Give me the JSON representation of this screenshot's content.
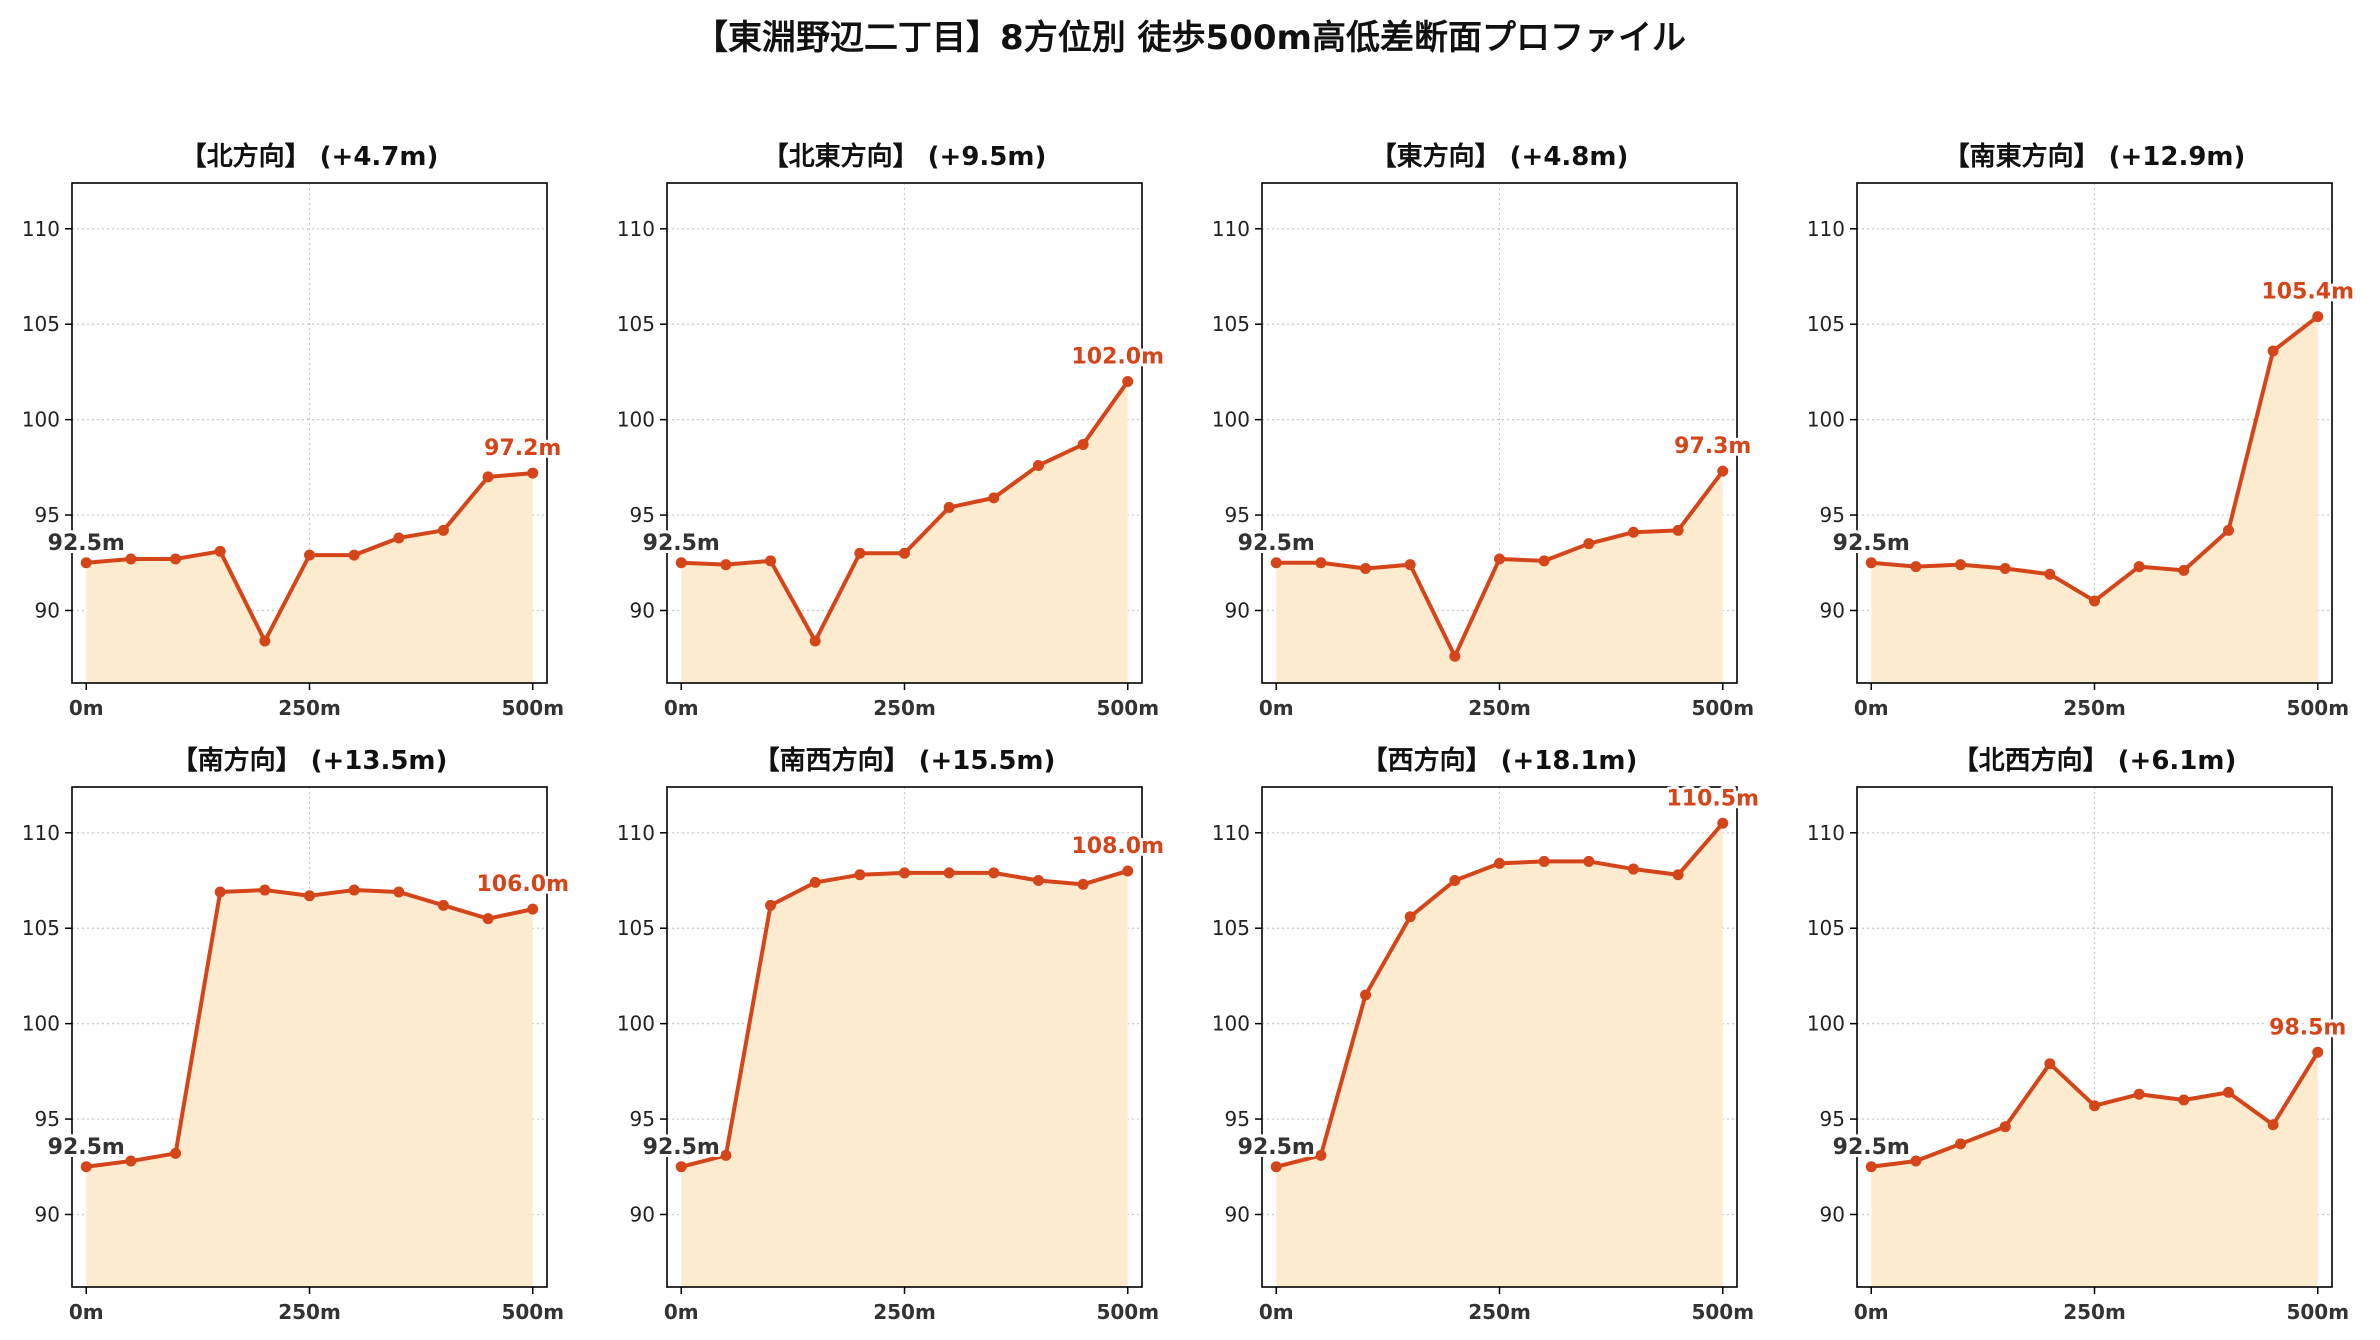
{
  "title": "【東淵野辺二丁目】8方位別 徒歩500m高低差断面プロファイル",
  "colors": {
    "line": "#d4461a",
    "fill": "#fdebd0",
    "start_label": "#333333",
    "end_label": "#d4461a",
    "grid": "#c8c8c8",
    "axis": "#000000"
  },
  "chart_data": [
    {
      "type": "area",
      "title": "【北方向】 (+4.7m)",
      "x": [
        0,
        50,
        100,
        150,
        200,
        250,
        300,
        350,
        400,
        450,
        500
      ],
      "y": [
        92.5,
        92.7,
        92.7,
        93.1,
        88.4,
        92.9,
        92.9,
        93.8,
        94.2,
        97.0,
        97.2
      ],
      "xticks": [
        "0m",
        "250m",
        "500m"
      ],
      "yticks": [
        90,
        95,
        100,
        105,
        110
      ],
      "xlim": [
        0,
        500
      ],
      "ylim": [
        86.2,
        112.4
      ],
      "grid": true,
      "start_label": "92.5m",
      "end_label": "97.2m"
    },
    {
      "type": "area",
      "title": "【北東方向】 (+9.5m)",
      "x": [
        0,
        50,
        100,
        150,
        200,
        250,
        300,
        350,
        400,
        450,
        500
      ],
      "y": [
        92.5,
        92.4,
        92.6,
        88.4,
        93.0,
        93.0,
        95.4,
        95.9,
        97.6,
        98.7,
        102.0
      ],
      "xticks": [
        "0m",
        "250m",
        "500m"
      ],
      "yticks": [
        90,
        95,
        100,
        105,
        110
      ],
      "xlim": [
        0,
        500
      ],
      "ylim": [
        86.2,
        112.4
      ],
      "grid": true,
      "start_label": "92.5m",
      "end_label": "102.0m"
    },
    {
      "type": "area",
      "title": "【東方向】 (+4.8m)",
      "x": [
        0,
        50,
        100,
        150,
        200,
        250,
        300,
        350,
        400,
        450,
        500
      ],
      "y": [
        92.5,
        92.5,
        92.2,
        92.4,
        87.6,
        92.7,
        92.6,
        93.5,
        94.1,
        94.2,
        97.3
      ],
      "xticks": [
        "0m",
        "250m",
        "500m"
      ],
      "yticks": [
        90,
        95,
        100,
        105,
        110
      ],
      "xlim": [
        0,
        500
      ],
      "ylim": [
        86.2,
        112.4
      ],
      "grid": true,
      "start_label": "92.5m",
      "end_label": "97.3m"
    },
    {
      "type": "area",
      "title": "【南東方向】 (+12.9m)",
      "x": [
        0,
        50,
        100,
        150,
        200,
        250,
        300,
        350,
        400,
        450,
        500
      ],
      "y": [
        92.5,
        92.3,
        92.4,
        92.2,
        91.9,
        90.5,
        92.3,
        92.1,
        94.2,
        103.6,
        105.4
      ],
      "xticks": [
        "0m",
        "250m",
        "500m"
      ],
      "yticks": [
        90,
        95,
        100,
        105,
        110
      ],
      "xlim": [
        0,
        500
      ],
      "ylim": [
        86.2,
        112.4
      ],
      "grid": true,
      "start_label": "92.5m",
      "end_label": "105.4m"
    },
    {
      "type": "area",
      "title": "【南方向】 (+13.5m)",
      "x": [
        0,
        50,
        100,
        150,
        200,
        250,
        300,
        350,
        400,
        450,
        500
      ],
      "y": [
        92.5,
        92.8,
        93.2,
        106.9,
        107.0,
        106.7,
        107.0,
        106.9,
        106.2,
        105.5,
        106.0
      ],
      "xticks": [
        "0m",
        "250m",
        "500m"
      ],
      "yticks": [
        90,
        95,
        100,
        105,
        110
      ],
      "xlim": [
        0,
        500
      ],
      "ylim": [
        86.2,
        112.4
      ],
      "grid": true,
      "start_label": "92.5m",
      "end_label": "106.0m"
    },
    {
      "type": "area",
      "title": "【南西方向】 (+15.5m)",
      "x": [
        0,
        50,
        100,
        150,
        200,
        250,
        300,
        350,
        400,
        450,
        500
      ],
      "y": [
        92.5,
        93.1,
        106.2,
        107.4,
        107.8,
        107.9,
        107.9,
        107.9,
        107.5,
        107.3,
        108.0
      ],
      "xticks": [
        "0m",
        "250m",
        "500m"
      ],
      "yticks": [
        90,
        95,
        100,
        105,
        110
      ],
      "xlim": [
        0,
        500
      ],
      "ylim": [
        86.2,
        112.4
      ],
      "grid": true,
      "start_label": "92.5m",
      "end_label": "108.0m"
    },
    {
      "type": "area",
      "title": "【西方向】 (+18.1m)",
      "x": [
        0,
        50,
        100,
        150,
        200,
        250,
        300,
        350,
        400,
        450,
        500
      ],
      "y": [
        92.5,
        93.1,
        101.5,
        105.6,
        107.5,
        108.4,
        108.5,
        108.5,
        108.1,
        107.8,
        110.5
      ],
      "xticks": [
        "0m",
        "250m",
        "500m"
      ],
      "yticks": [
        90,
        95,
        100,
        105,
        110
      ],
      "xlim": [
        0,
        500
      ],
      "ylim": [
        86.2,
        112.4
      ],
      "grid": true,
      "start_label": "92.5m",
      "end_label": "110.5m"
    },
    {
      "type": "area",
      "title": "【北西方向】 (+6.1m)",
      "x": [
        0,
        50,
        100,
        150,
        200,
        250,
        300,
        350,
        400,
        450,
        500
      ],
      "y": [
        92.5,
        92.8,
        93.7,
        94.6,
        97.9,
        95.7,
        96.3,
        96.0,
        96.4,
        94.7,
        98.5
      ],
      "xticks": [
        "0m",
        "250m",
        "500m"
      ],
      "yticks": [
        90,
        95,
        100,
        105,
        110
      ],
      "xlim": [
        0,
        500
      ],
      "ylim": [
        86.2,
        112.4
      ],
      "grid": true,
      "start_label": "92.5m",
      "end_label": "98.5m"
    }
  ]
}
